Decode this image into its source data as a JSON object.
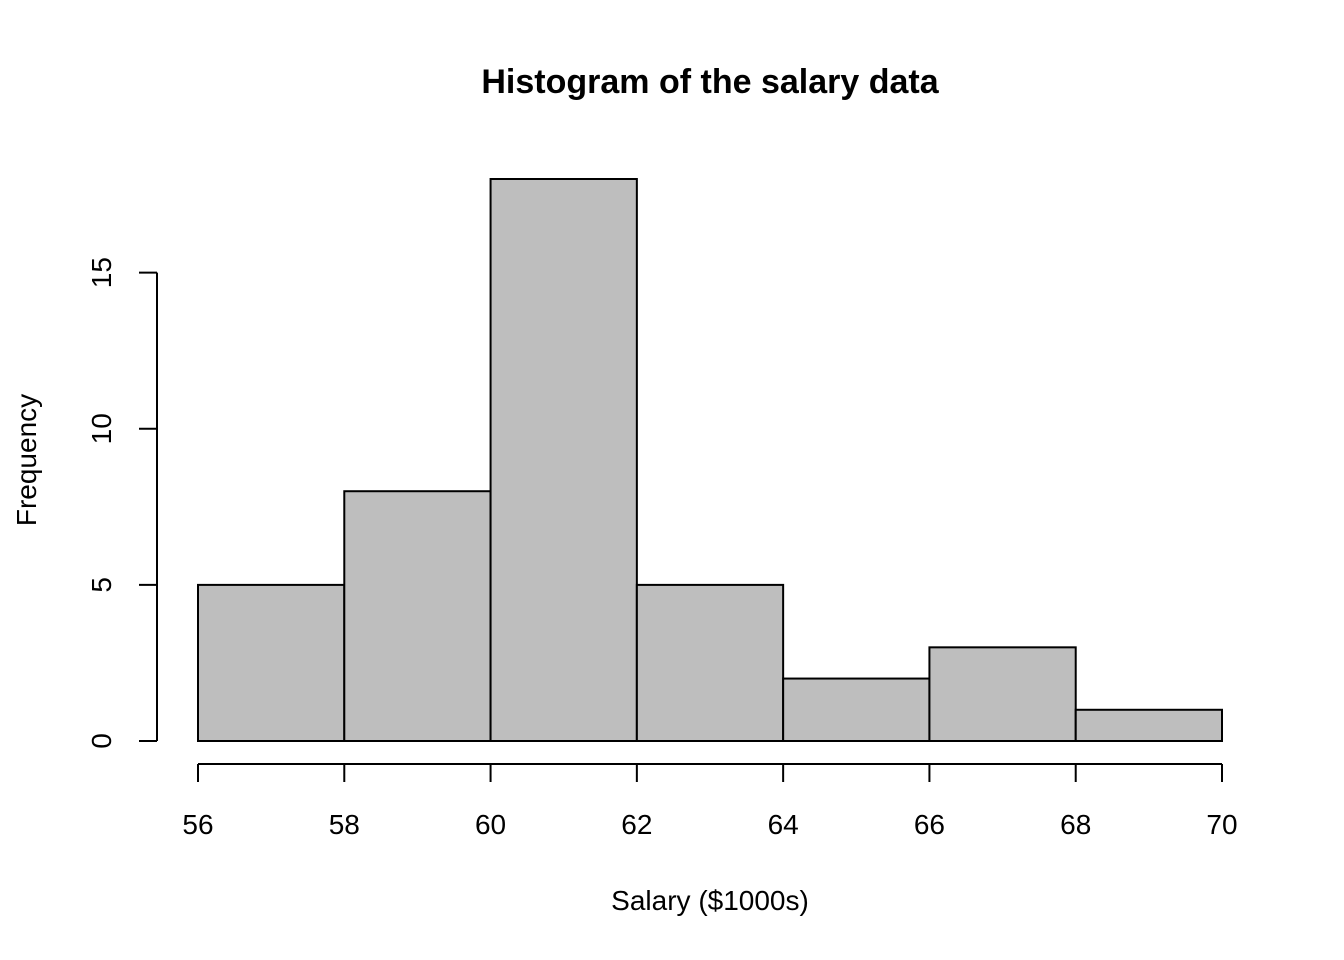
{
  "chart_data": {
    "type": "bar",
    "title": "Histogram of the salary data",
    "xlabel": "Salary ($1000s)",
    "ylabel": "Frequency",
    "bins": [
      {
        "x0": 56,
        "x1": 58,
        "count": 5
      },
      {
        "x0": 58,
        "x1": 60,
        "count": 8
      },
      {
        "x0": 60,
        "x1": 62,
        "count": 18
      },
      {
        "x0": 62,
        "x1": 64,
        "count": 5
      },
      {
        "x0": 64,
        "x1": 66,
        "count": 2
      },
      {
        "x0": 66,
        "x1": 68,
        "count": 3
      },
      {
        "x0": 68,
        "x1": 70,
        "count": 1
      }
    ],
    "x_ticks": [
      56,
      58,
      60,
      62,
      64,
      66,
      68,
      70
    ],
    "y_ticks": [
      0,
      5,
      10,
      15
    ],
    "xlim": [
      56,
      70
    ],
    "ylim": [
      0,
      18
    ],
    "bar_color": "#bebebe",
    "grid": false
  }
}
